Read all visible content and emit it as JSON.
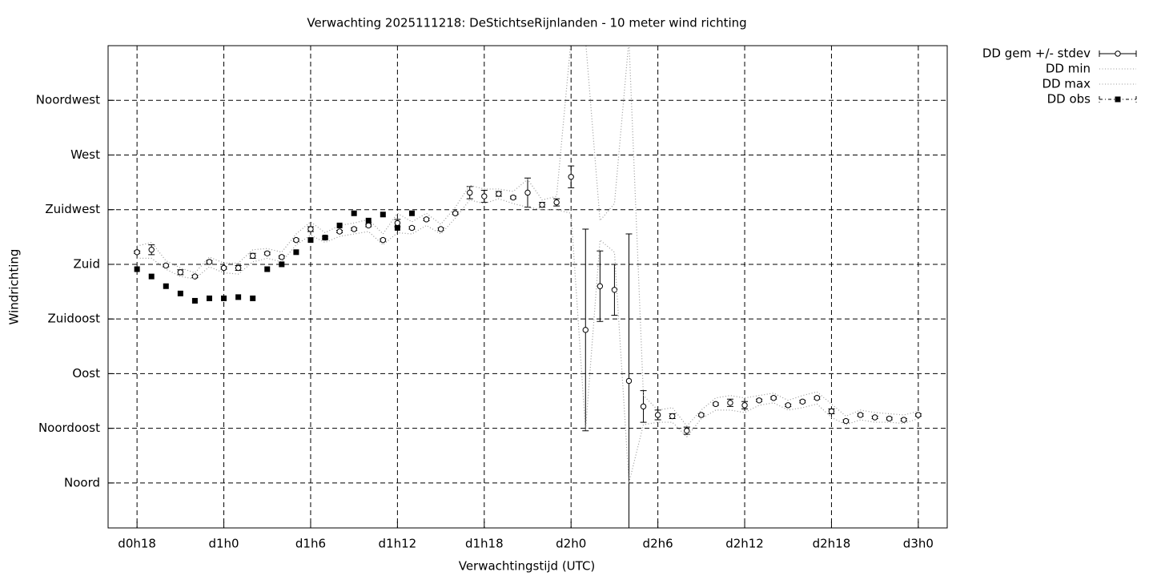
{
  "chart_data": {
    "type": "errorline",
    "title": "Verwachting 2025111218: DeStichtseRijnlanden - 10 meter wind richting",
    "x_label": "Verwachtingstijd (UTC)",
    "y_label": "Windrichting",
    "x": [
      18,
      19,
      20,
      21,
      22,
      23,
      24,
      25,
      26,
      27,
      28,
      29,
      30,
      31,
      32,
      33,
      34,
      35,
      36,
      37,
      38,
      39,
      40,
      41,
      42,
      43,
      44,
      45,
      46,
      47,
      48,
      49,
      50,
      51,
      52,
      53,
      54,
      55,
      56,
      57,
      58,
      59,
      60,
      61,
      62,
      63,
      64,
      65,
      66,
      67,
      68,
      69,
      70,
      71,
      72
    ],
    "xlim": [
      16,
      74
    ],
    "xticks": [
      {
        "value": 18,
        "label": "d0h18"
      },
      {
        "value": 24,
        "label": "d1h0"
      },
      {
        "value": 30,
        "label": "d1h6"
      },
      {
        "value": 36,
        "label": "d1h12"
      },
      {
        "value": 42,
        "label": "d1h18"
      },
      {
        "value": 48,
        "label": "d2h0"
      },
      {
        "value": 54,
        "label": "d2h6"
      },
      {
        "value": 60,
        "label": "d2h12"
      },
      {
        "value": 66,
        "label": "d2h18"
      },
      {
        "value": 72,
        "label": "d3h0"
      }
    ],
    "ylim": [
      -37,
      360
    ],
    "yticks": [
      {
        "value": 0,
        "label": "Noord"
      },
      {
        "value": 45,
        "label": "Noordoost"
      },
      {
        "value": 90,
        "label": "Oost"
      },
      {
        "value": 135,
        "label": "Zuidoost"
      },
      {
        "value": 180,
        "label": "Zuid"
      },
      {
        "value": 225,
        "label": "Zuidwest"
      },
      {
        "value": 270,
        "label": "West"
      },
      {
        "value": 315,
        "label": "Noordwest"
      }
    ],
    "grid": true,
    "legend": "outside-top-right",
    "series": [
      {
        "name": "DD gem +/- stdev",
        "style": "errorbar-circle",
        "color": "#000000",
        "values": [
          190,
          192,
          179,
          173.5,
          170,
          182,
          177,
          177,
          187,
          189,
          186,
          200,
          209,
          202,
          207,
          209,
          212,
          200,
          214,
          210,
          217,
          209,
          222,
          239,
          236,
          238,
          235,
          239,
          229,
          231,
          252,
          126,
          162,
          159,
          84,
          63,
          56,
          55,
          43,
          56,
          65,
          66,
          64,
          68,
          70,
          64,
          67,
          70,
          59,
          51,
          56,
          54,
          53,
          52,
          56
        ],
        "stdev": [
          1,
          4,
          1,
          2,
          1,
          1,
          1,
          2,
          2,
          1,
          1,
          1,
          2,
          1,
          1,
          1,
          1,
          1,
          3,
          1,
          1,
          1,
          1,
          5,
          5,
          2,
          1,
          12,
          2,
          3,
          9,
          83,
          29,
          21,
          121,
          13,
          4,
          2,
          3,
          1,
          1,
          3,
          3,
          1,
          1,
          1,
          1,
          1,
          2,
          1,
          1,
          1,
          1,
          1,
          1
        ]
      },
      {
        "name": "DD min",
        "style": "dotted",
        "color": "#999999",
        "values": [
          185,
          185,
          176,
          170,
          168,
          178,
          173,
          172,
          182,
          185,
          182,
          196,
          204,
          198,
          203,
          205,
          207,
          196,
          206,
          205,
          212,
          205,
          218,
          233,
          230,
          234,
          230,
          227,
          225,
          225,
          222,
          43,
          200,
          190,
          0,
          48,
          50,
          50,
          38,
          53,
          60,
          60,
          58,
          64,
          66,
          60,
          62,
          65,
          54,
          48,
          52,
          50,
          50,
          49,
          53
        ]
      },
      {
        "name": "DD max",
        "style": "dotted",
        "color": "#999999",
        "values": [
          195,
          198,
          183,
          177,
          173,
          186,
          181,
          181,
          192,
          193,
          190,
          205,
          215,
          206,
          212,
          214,
          217,
          205,
          222,
          215,
          222,
          213,
          227,
          245,
          242,
          242,
          240,
          250,
          233,
          236,
          365,
          365,
          216,
          230,
          365,
          72,
          60,
          62,
          47,
          60,
          70,
          72,
          70,
          72,
          74,
          68,
          72,
          75,
          65,
          55,
          60,
          58,
          57,
          56,
          59
        ]
      },
      {
        "name": "DD obs",
        "style": "square",
        "color": "#000000",
        "values": [
          176,
          170,
          162,
          156,
          150,
          152,
          152,
          153,
          152,
          176,
          180,
          190,
          200,
          202,
          212,
          222,
          216,
          221,
          210,
          222,
          null,
          null,
          null,
          null,
          null,
          null,
          null,
          null,
          null,
          null,
          null,
          null,
          null,
          null,
          null,
          null,
          null,
          null,
          null,
          null,
          null,
          null,
          null,
          null,
          null,
          null,
          null,
          null,
          null,
          null,
          null,
          null,
          null,
          null,
          null
        ]
      }
    ]
  }
}
